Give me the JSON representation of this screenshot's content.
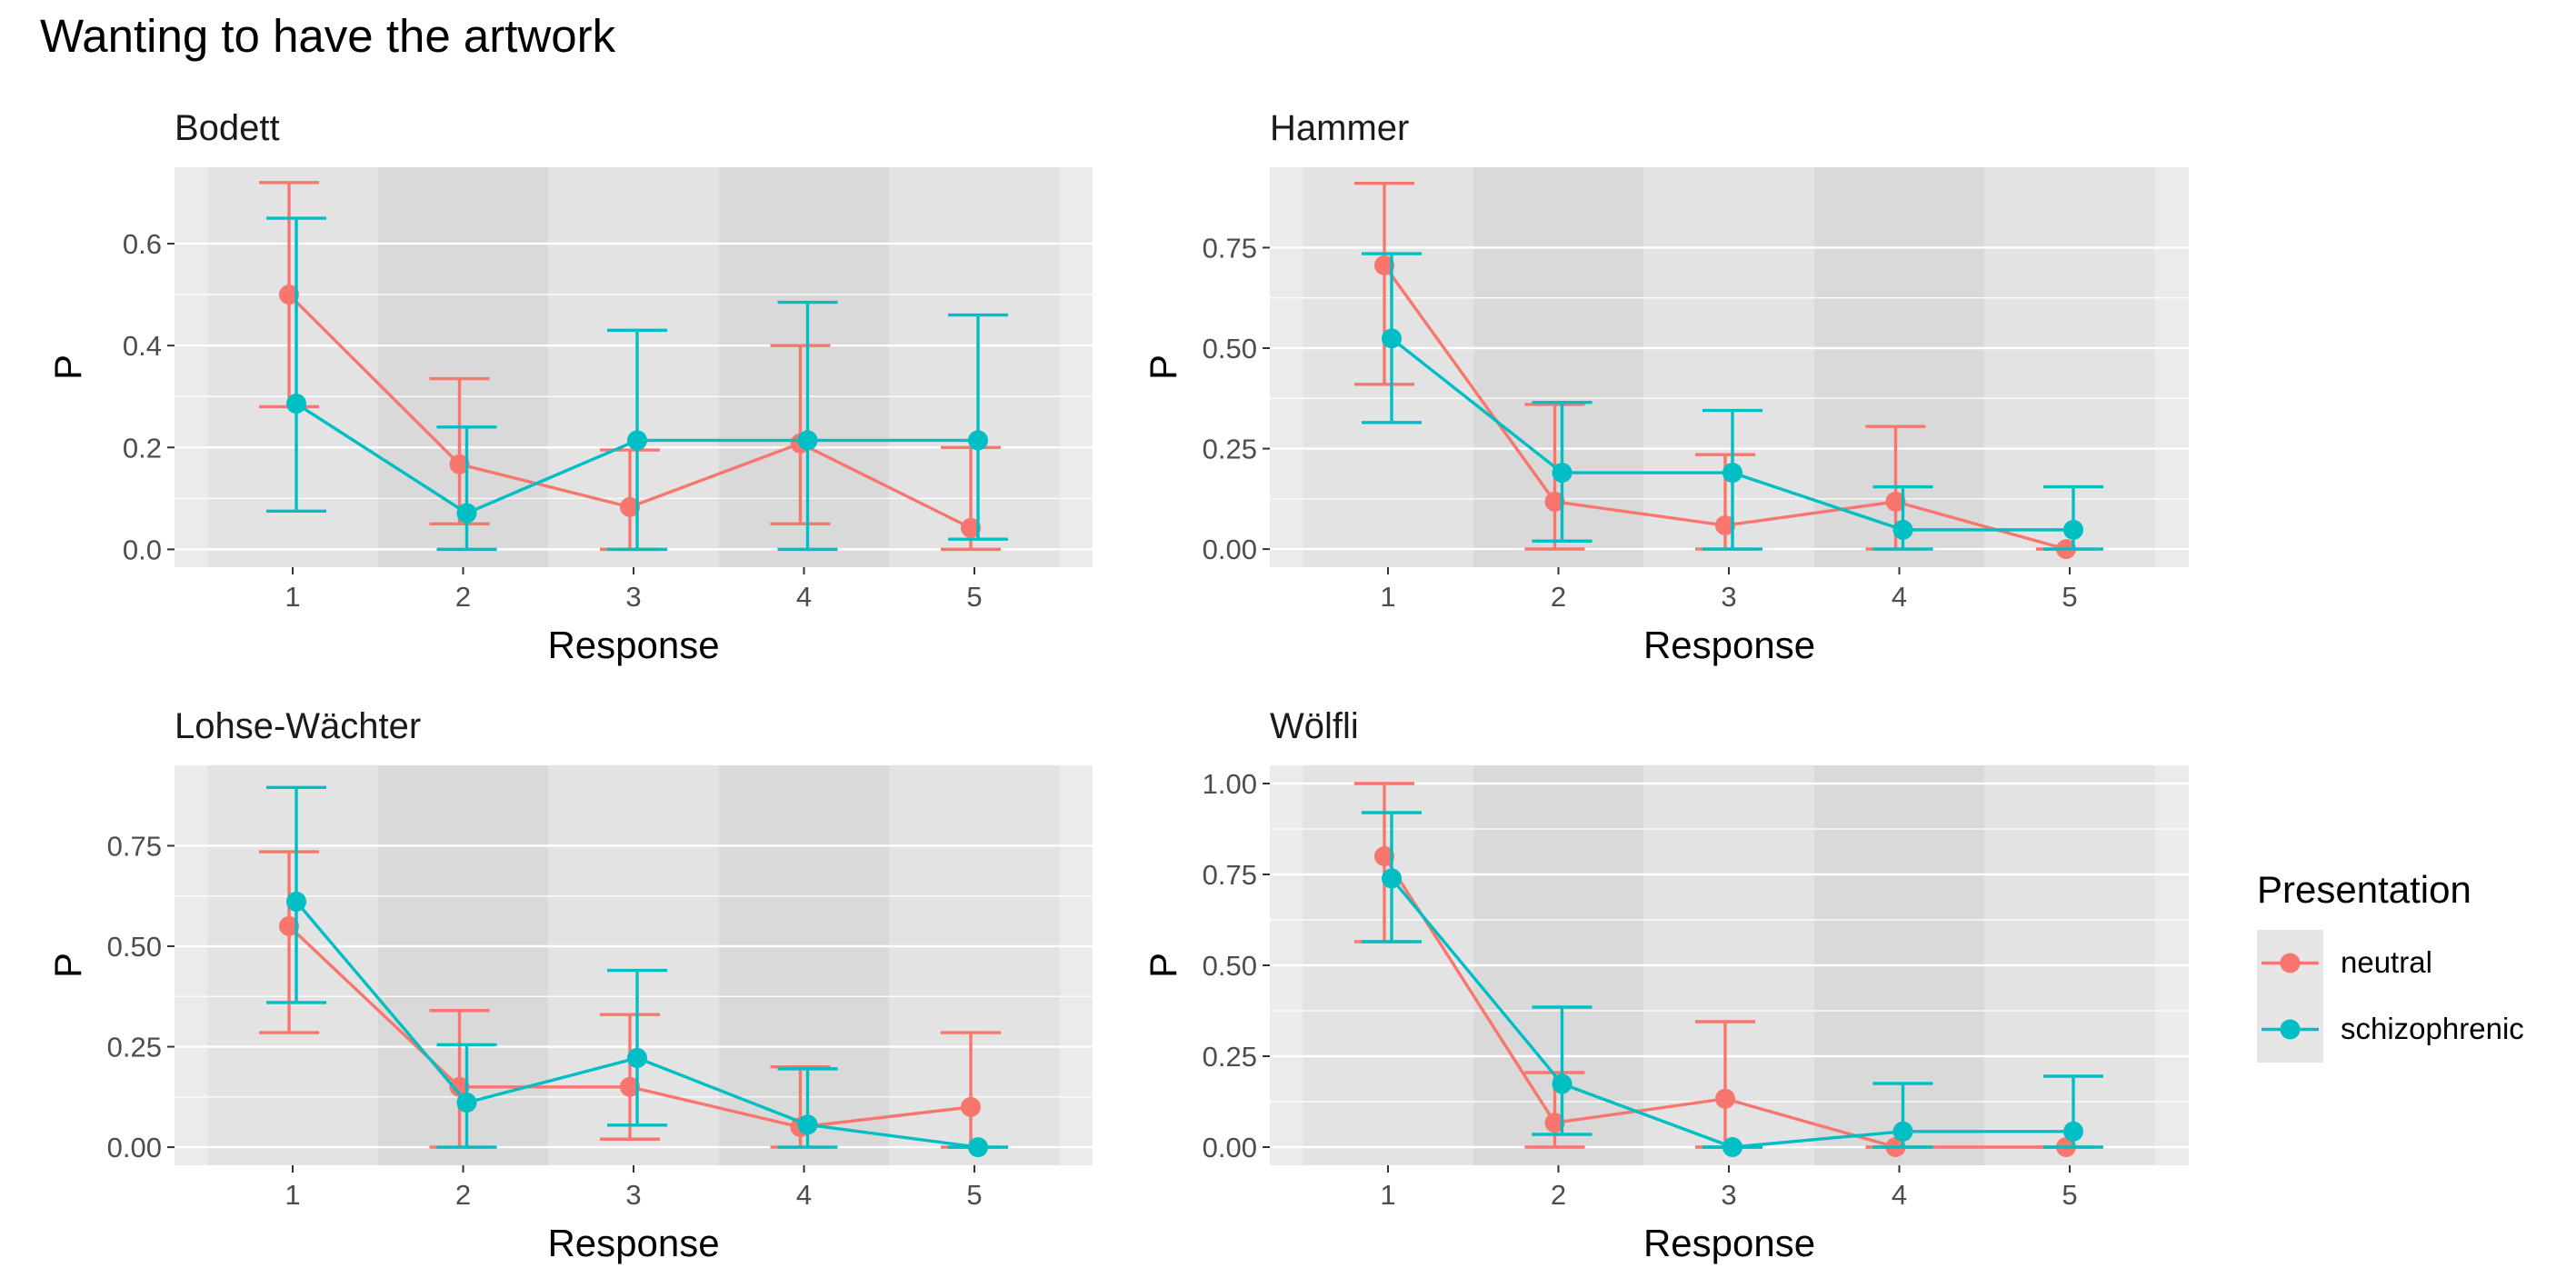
{
  "title": "Wanting to have the artwork",
  "colors": {
    "neutral": "#F8766D",
    "schizophrenic": "#00BFC4",
    "panel_bg": "#EBEBEB",
    "band_light": "#E3E3E3",
    "band_dark": "#D9D9D9",
    "grid": "#FFFFFF",
    "legend_key_bg": "#E6E6E6"
  },
  "legend": {
    "title": "Presentation",
    "items": [
      {
        "label": "neutral",
        "color": "#F8766D"
      },
      {
        "label": "schizophrenic",
        "color": "#00BFC4"
      }
    ]
  },
  "chart_data": [
    {
      "type": "line",
      "title": "Bodett",
      "xlabel": "Response",
      "ylabel": "P",
      "categories": [
        1,
        2,
        3,
        4,
        5
      ],
      "ylim": [
        -0.035,
        0.75
      ],
      "yticks": [
        0.0,
        0.2,
        0.4,
        0.6
      ],
      "ytick_labels": [
        "0.0",
        "0.2",
        "0.4",
        "0.6"
      ],
      "series": [
        {
          "name": "neutral",
          "values": [
            0.5,
            0.167,
            0.083,
            0.208,
            0.042
          ],
          "lower": [
            0.28,
            0.05,
            0.0,
            0.05,
            0.0
          ],
          "upper": [
            0.72,
            0.335,
            0.195,
            0.4,
            0.2
          ]
        },
        {
          "name": "schizophrenic",
          "values": [
            0.286,
            0.071,
            0.214,
            0.214,
            0.214
          ],
          "lower": [
            0.075,
            0.0,
            0.0,
            0.0,
            0.02
          ],
          "upper": [
            0.65,
            0.24,
            0.43,
            0.485,
            0.46
          ]
        }
      ]
    },
    {
      "type": "line",
      "title": "Hammer",
      "xlabel": "Response",
      "ylabel": "P",
      "categories": [
        1,
        2,
        3,
        4,
        5
      ],
      "ylim": [
        -0.045,
        0.95
      ],
      "yticks": [
        0.0,
        0.25,
        0.5,
        0.75
      ],
      "ytick_labels": [
        "0.00",
        "0.25",
        "0.50",
        "0.75"
      ],
      "series": [
        {
          "name": "neutral",
          "values": [
            0.706,
            0.118,
            0.059,
            0.118,
            0.0
          ],
          "lower": [
            0.41,
            0.0,
            0.0,
            0.0,
            0.0
          ],
          "upper": [
            0.91,
            0.36,
            0.235,
            0.305,
            0.0
          ]
        },
        {
          "name": "schizophrenic",
          "values": [
            0.524,
            0.19,
            0.19,
            0.048,
            0.048
          ],
          "lower": [
            0.315,
            0.02,
            0.0,
            0.0,
            0.0
          ],
          "upper": [
            0.735,
            0.365,
            0.345,
            0.155,
            0.155
          ]
        }
      ]
    },
    {
      "type": "line",
      "title": "Lohse-Wächter",
      "xlabel": "Response",
      "ylabel": "P",
      "categories": [
        1,
        2,
        3,
        4,
        5
      ],
      "ylim": [
        -0.045,
        0.95
      ],
      "yticks": [
        0.0,
        0.25,
        0.5,
        0.75
      ],
      "ytick_labels": [
        "0.00",
        "0.25",
        "0.50",
        "0.75"
      ],
      "series": [
        {
          "name": "neutral",
          "values": [
            0.55,
            0.15,
            0.15,
            0.05,
            0.1
          ],
          "lower": [
            0.285,
            0.0,
            0.02,
            0.0,
            0.0
          ],
          "upper": [
            0.735,
            0.34,
            0.33,
            0.2,
            0.285
          ]
        },
        {
          "name": "schizophrenic",
          "values": [
            0.611,
            0.111,
            0.222,
            0.056,
            0.0
          ],
          "lower": [
            0.36,
            0.0,
            0.055,
            0.0,
            0.0
          ],
          "upper": [
            0.895,
            0.255,
            0.44,
            0.195,
            0.0
          ]
        }
      ]
    },
    {
      "type": "line",
      "title": "Wölfli",
      "xlabel": "Response",
      "ylabel": "P",
      "categories": [
        1,
        2,
        3,
        4,
        5
      ],
      "ylim": [
        -0.05,
        1.05
      ],
      "yticks": [
        0.0,
        0.25,
        0.5,
        0.75,
        1.0
      ],
      "ytick_labels": [
        "0.00",
        "0.25",
        "0.50",
        "0.75",
        "1.00"
      ],
      "series": [
        {
          "name": "neutral",
          "values": [
            0.8,
            0.067,
            0.133,
            0.0,
            0.0
          ],
          "lower": [
            0.565,
            0.0,
            0.0,
            0.0,
            0.0
          ],
          "upper": [
            1.0,
            0.205,
            0.345,
            0.0,
            0.0
          ]
        },
        {
          "name": "schizophrenic",
          "values": [
            0.739,
            0.174,
            0.0,
            0.043,
            0.043
          ],
          "lower": [
            0.565,
            0.035,
            0.0,
            0.0,
            0.0
          ],
          "upper": [
            0.92,
            0.385,
            0.0,
            0.175,
            0.195
          ]
        }
      ]
    }
  ]
}
